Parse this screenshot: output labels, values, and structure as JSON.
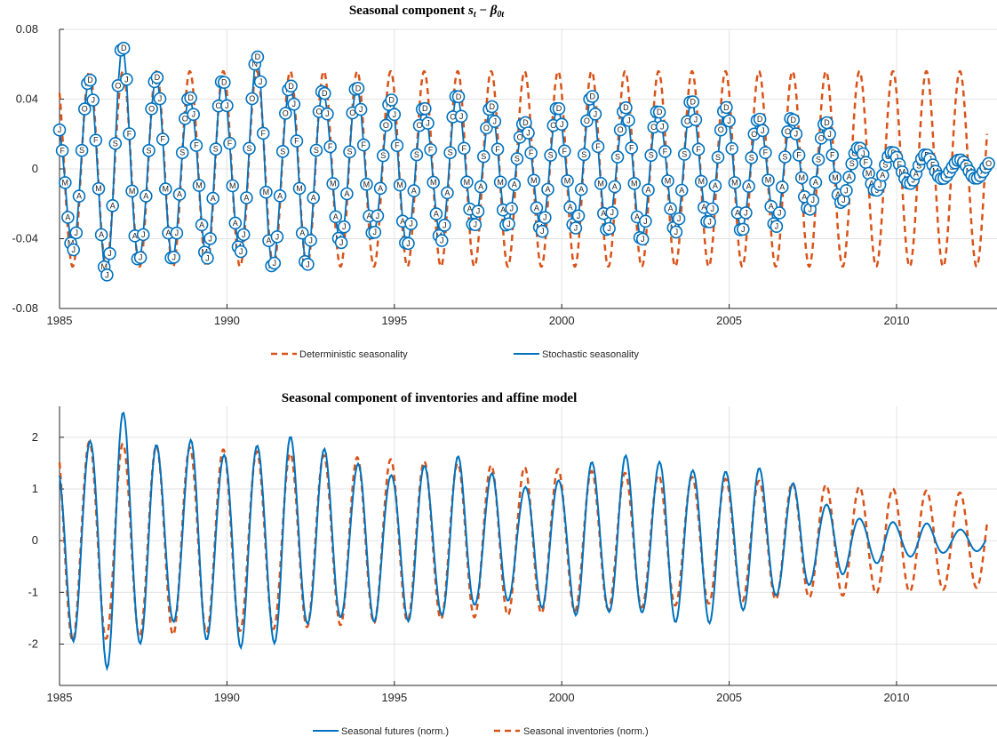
{
  "colors": {
    "orange": "#D95319",
    "blue": "#0072BD",
    "grid": "#e3e3e3",
    "axis": "#262626"
  },
  "chart_data": [
    {
      "type": "line",
      "title": "Seasonal component s_t − β_0t",
      "title_parts": {
        "prefix": "Seasonal component ",
        "s": "s",
        "t": "t",
        "minus": " − ",
        "beta": "β",
        "sub": "0t"
      },
      "xlim": [
        1985,
        2013
      ],
      "ylim": [
        -0.08,
        0.08
      ],
      "xticks": [
        1985,
        1990,
        1995,
        2000,
        2005,
        2010
      ],
      "yticks": [
        -0.08,
        -0.04,
        0,
        0.04,
        0.08
      ],
      "ytick_labels": [
        "-0.08",
        "-0.04",
        "0",
        "0.04",
        "0.08"
      ],
      "grid": true,
      "legend_position": "bottom-outside",
      "legend": [
        "Deterministic seasonality",
        "Stochastic seasonality"
      ],
      "month_letters": [
        "J",
        "F",
        "M",
        "A",
        "M",
        "J",
        "J",
        "A",
        "S",
        "O",
        "N",
        "D"
      ],
      "deterministic": {
        "name": "Deterministic seasonality",
        "amplitude": 0.056,
        "period_years": 1.0,
        "peak_month_index": 10.7,
        "start": 1985.0,
        "end": 2012.7
      },
      "stochastic": {
        "name": "Stochastic seasonality",
        "start": 1985.0,
        "end": 2012.75,
        "amplitude_by_year": [
          [
            1985,
            0.03
          ],
          [
            1986,
            0.06
          ],
          [
            1987,
            0.065
          ],
          [
            1988,
            0.05
          ],
          [
            1989,
            0.047
          ],
          [
            1990,
            0.05
          ],
          [
            1991,
            0.06
          ],
          [
            1992,
            0.052
          ],
          [
            1993,
            0.047
          ],
          [
            1994,
            0.042
          ],
          [
            1995,
            0.04
          ],
          [
            1996,
            0.04
          ],
          [
            1997,
            0.04
          ],
          [
            1998,
            0.033
          ],
          [
            1999,
            0.03
          ],
          [
            2000,
            0.037
          ],
          [
            2001,
            0.038
          ],
          [
            2002,
            0.037
          ],
          [
            2003,
            0.037
          ],
          [
            2004,
            0.036
          ],
          [
            2005,
            0.034
          ],
          [
            2006,
            0.033
          ],
          [
            2007,
            0.028
          ],
          [
            2008,
            0.024
          ],
          [
            2009,
            0.012
          ],
          [
            2010,
            0.01
          ],
          [
            2011,
            0.007
          ],
          [
            2012,
            0.005
          ]
        ]
      }
    },
    {
      "type": "line",
      "title": "Seasonal component of inventories and affine model",
      "xlim": [
        1985,
        2013
      ],
      "ylim": [
        -2.8,
        2.6
      ],
      "xticks": [
        1985,
        1990,
        1995,
        2000,
        2005,
        2010
      ],
      "yticks": [
        -2,
        -1,
        0,
        1,
        2
      ],
      "ytick_labels": [
        "-2",
        "-1",
        "0",
        "1",
        "2"
      ],
      "grid": true,
      "legend_position": "bottom-outside",
      "legend": [
        "Seasonal futures (norm.)",
        "Seasonal inventories (norm.)"
      ],
      "futures": {
        "name": "Seasonal futures (norm.)",
        "start": 1985.0,
        "end": 2012.7,
        "amplitude_by_year": [
          [
            1985,
            1.5
          ],
          [
            1986,
            2.2
          ],
          [
            1987,
            2.5
          ],
          [
            1988,
            1.6
          ],
          [
            1989,
            1.9
          ],
          [
            1990,
            1.8
          ],
          [
            1991,
            2.0
          ],
          [
            1992,
            1.9
          ],
          [
            1993,
            1.6
          ],
          [
            1994,
            1.5
          ],
          [
            1995,
            1.4
          ],
          [
            1996,
            1.5
          ],
          [
            1997,
            1.5
          ],
          [
            1998,
            1.2
          ],
          [
            1999,
            1.1
          ],
          [
            2000,
            1.3
          ],
          [
            2001,
            1.5
          ],
          [
            2002,
            1.5
          ],
          [
            2003,
            1.5
          ],
          [
            2004,
            1.5
          ],
          [
            2005,
            1.4
          ],
          [
            2006,
            1.3
          ],
          [
            2007,
            1.0
          ],
          [
            2008,
            0.7
          ],
          [
            2009,
            0.45
          ],
          [
            2010,
            0.35
          ],
          [
            2011,
            0.3
          ],
          [
            2012,
            0.2
          ]
        ]
      },
      "inventories": {
        "name": "Seasonal inventories (norm.)",
        "amplitude_start": 1.95,
        "amplitude_end": 0.9,
        "start": 1985.0,
        "end": 2012.7
      }
    }
  ]
}
